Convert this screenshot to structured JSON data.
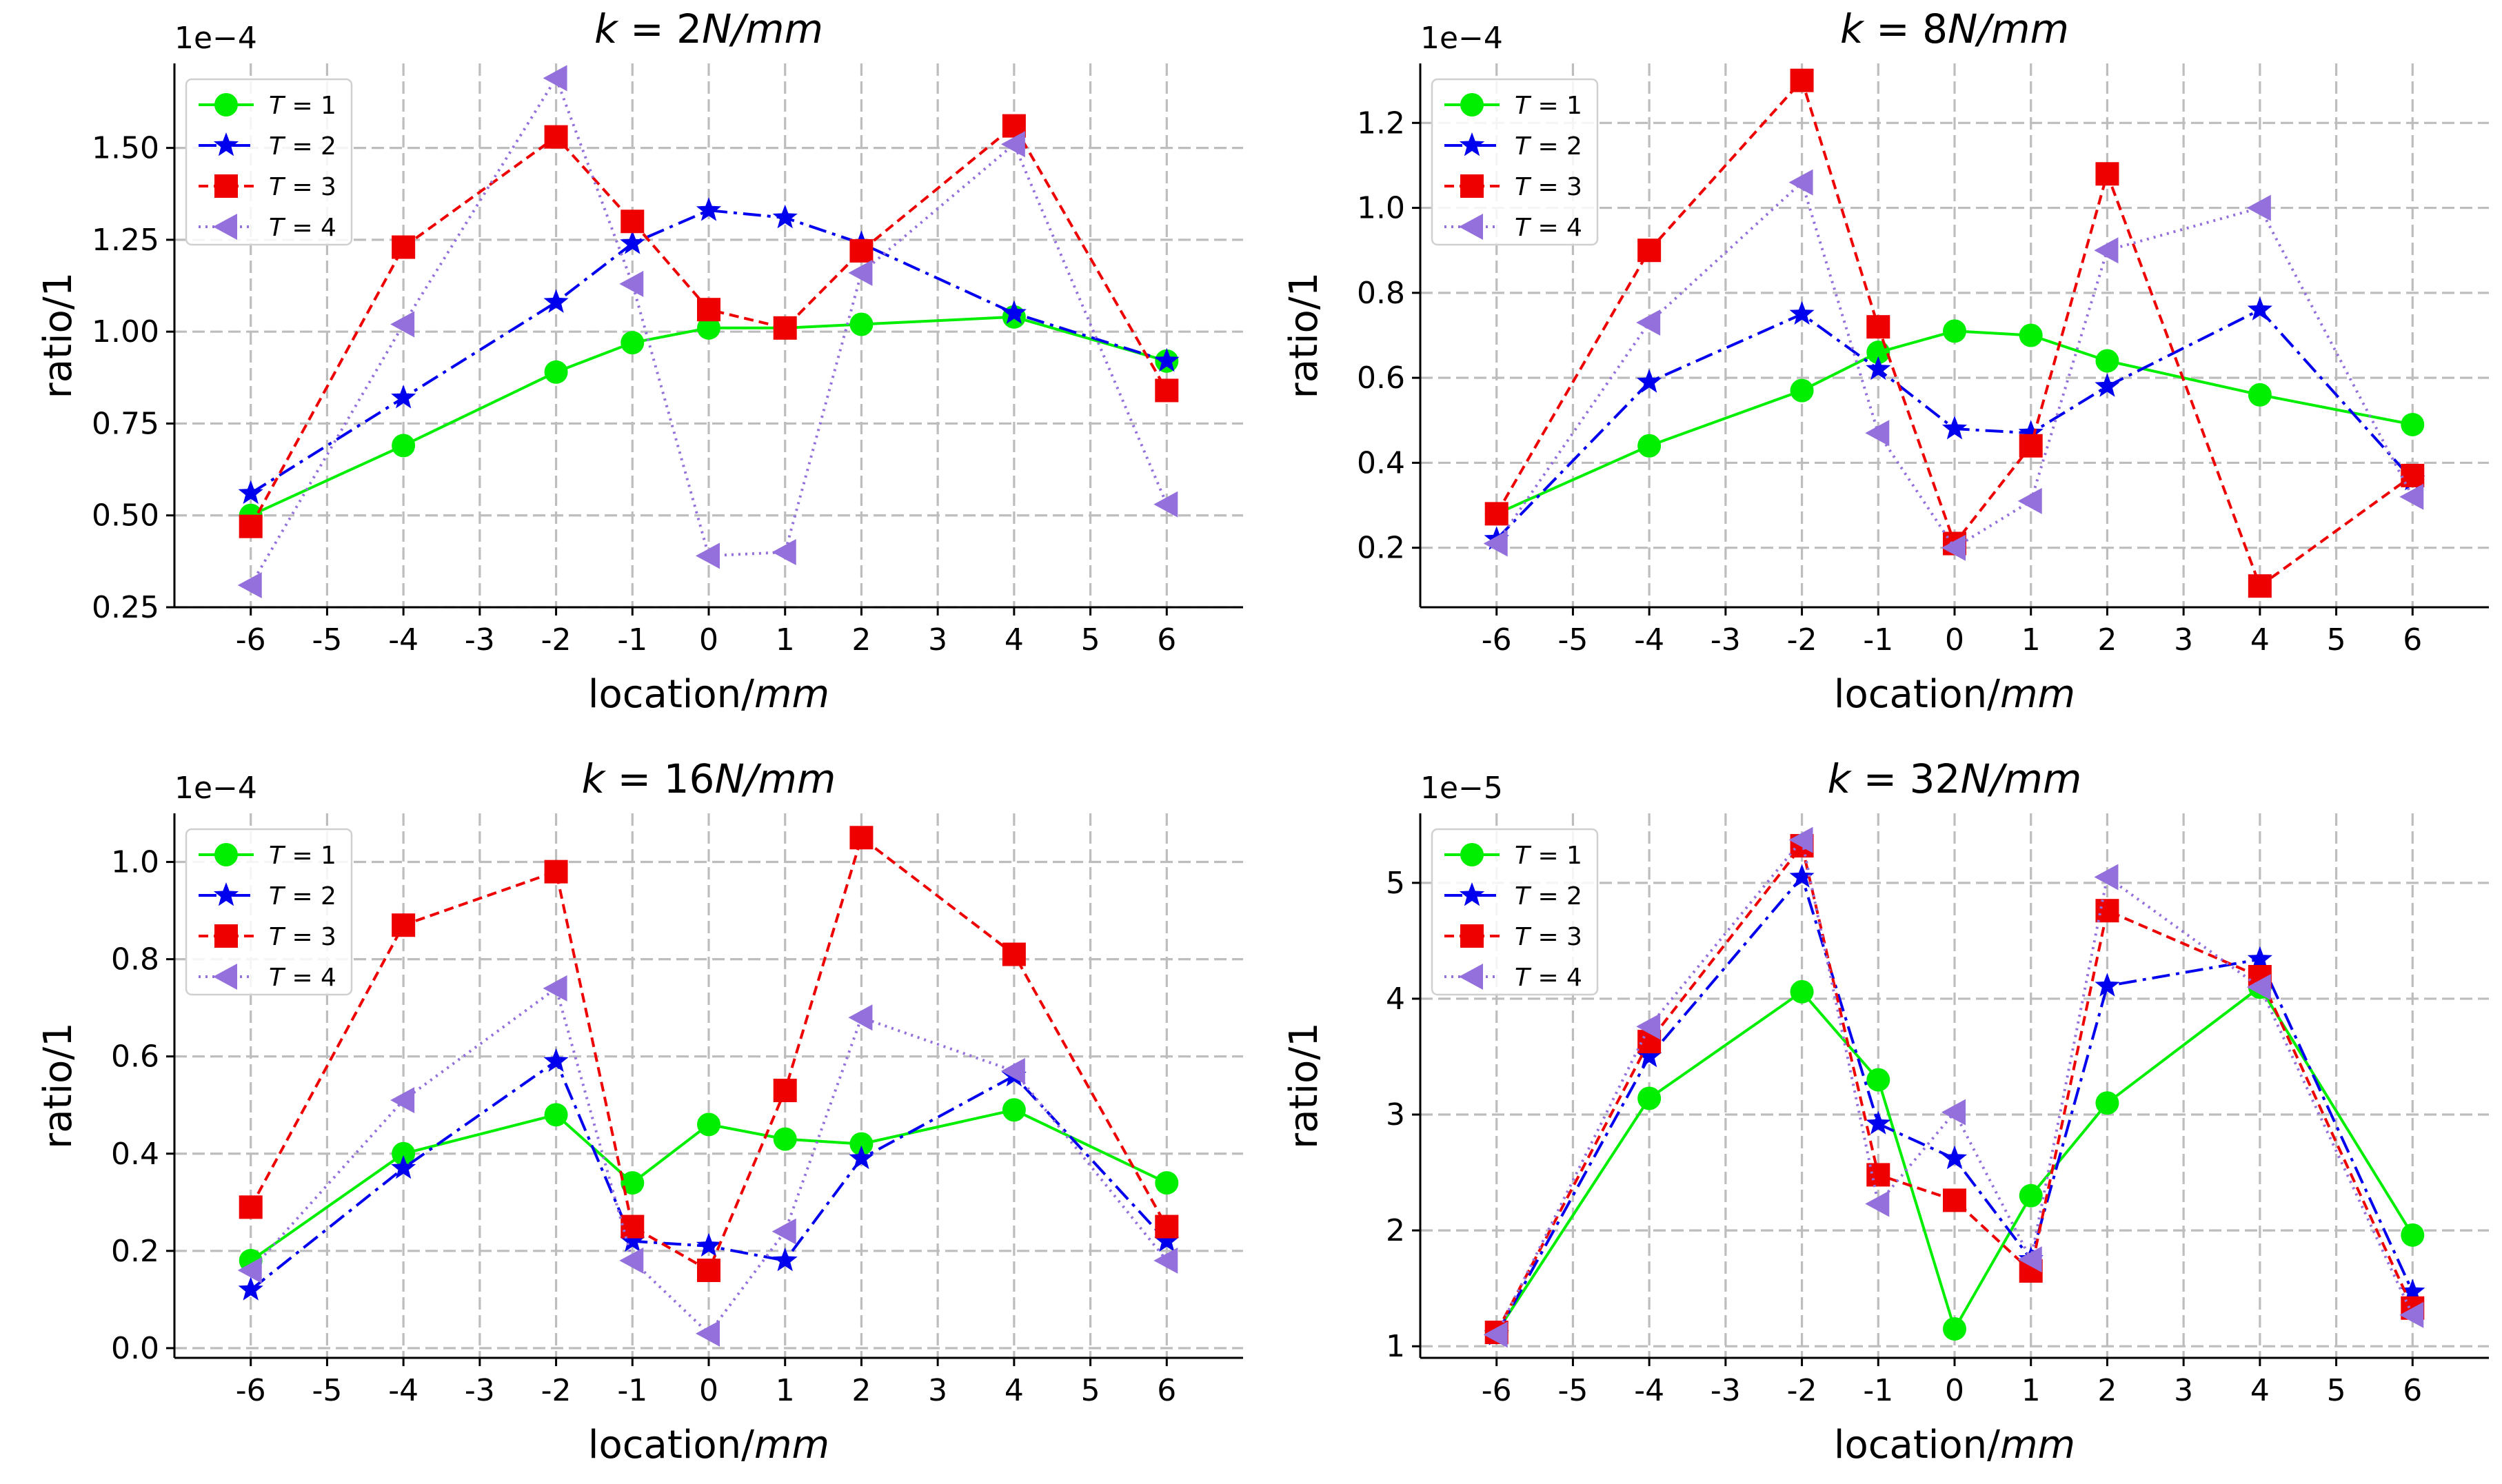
{
  "chart_data": [
    {
      "type": "line",
      "title": "k = 2N/mm",
      "title_parts": {
        "k": "k",
        "eq": " = 2",
        "unit": "N/mm"
      },
      "xlabel": "location/mm",
      "xlabel_parts": {
        "text": "location/",
        "unit": "mm"
      },
      "ylabel": "ratio/1",
      "y_multiplier": "1e−4",
      "x_ticks": [
        -6,
        -5,
        -4,
        -3,
        -2,
        -1,
        0,
        1,
        2,
        3,
        4,
        5,
        6
      ],
      "x_tick_labels": [
        "-6",
        "-5",
        "-4",
        "-3",
        "-2",
        "-1",
        "0",
        "1",
        "2",
        "3",
        "4",
        "5",
        "6"
      ],
      "xlim": [
        -7,
        7
      ],
      "ylim": [
        0.25,
        1.73
      ],
      "y_ticks": [
        0.25,
        0.5,
        0.75,
        1.0,
        1.25,
        1.5
      ],
      "y_tick_labels": [
        "0.25",
        "0.50",
        "0.75",
        "1.00",
        "1.25",
        "1.50"
      ],
      "x": [
        -6,
        -4,
        -2,
        -1,
        0,
        1,
        2,
        4,
        6
      ],
      "legend_position": "upper-left",
      "series": [
        {
          "name": "T = 1",
          "values": [
            0.5,
            0.69,
            0.89,
            0.97,
            1.01,
            1.01,
            1.02,
            1.04,
            0.92
          ]
        },
        {
          "name": "T = 2",
          "values": [
            0.56,
            0.82,
            1.08,
            1.24,
            1.33,
            1.31,
            1.24,
            1.05,
            0.92
          ]
        },
        {
          "name": "T = 3",
          "values": [
            0.47,
            1.23,
            1.53,
            1.3,
            1.06,
            1.01,
            1.22,
            1.56,
            0.84
          ]
        },
        {
          "name": "T = 4",
          "values": [
            0.31,
            1.02,
            1.69,
            1.13,
            0.39,
            0.4,
            1.16,
            1.51,
            0.53
          ]
        }
      ]
    },
    {
      "type": "line",
      "title": "k = 8N/mm",
      "title_parts": {
        "k": "k",
        "eq": " = 8",
        "unit": "N/mm"
      },
      "xlabel": "location/mm",
      "xlabel_parts": {
        "text": "location/",
        "unit": "mm"
      },
      "ylabel": "ratio/1",
      "y_multiplier": "1e−4",
      "x_ticks": [
        -6,
        -5,
        -4,
        -3,
        -2,
        -1,
        0,
        1,
        2,
        3,
        4,
        5,
        6
      ],
      "x_tick_labels": [
        "-6",
        "-5",
        "-4",
        "-3",
        "-2",
        "-1",
        "0",
        "1",
        "2",
        "3",
        "4",
        "5",
        "6"
      ],
      "xlim": [
        -7,
        7
      ],
      "ylim": [
        0.06,
        1.34
      ],
      "y_ticks": [
        0.2,
        0.4,
        0.6,
        0.8,
        1.0,
        1.2
      ],
      "y_tick_labels": [
        "0.2",
        "0.4",
        "0.6",
        "0.8",
        "1.0",
        "1.2"
      ],
      "x": [
        -6,
        -4,
        -2,
        -1,
        0,
        1,
        2,
        4,
        6
      ],
      "legend_position": "upper-left",
      "series": [
        {
          "name": "T = 1",
          "values": [
            0.28,
            0.44,
            0.57,
            0.66,
            0.71,
            0.7,
            0.64,
            0.56,
            0.49
          ]
        },
        {
          "name": "T = 2",
          "values": [
            0.22,
            0.59,
            0.75,
            0.62,
            0.48,
            0.47,
            0.58,
            0.76,
            0.36
          ]
        },
        {
          "name": "T = 3",
          "values": [
            0.28,
            0.9,
            1.3,
            0.72,
            0.21,
            0.44,
            1.08,
            0.11,
            0.37
          ]
        },
        {
          "name": "T = 4",
          "values": [
            0.21,
            0.73,
            1.06,
            0.47,
            0.2,
            0.31,
            0.9,
            1.0,
            0.32
          ]
        }
      ]
    },
    {
      "type": "line",
      "title": "k = 16N/mm",
      "title_parts": {
        "k": "k",
        "eq": " = 16",
        "unit": "N/mm"
      },
      "xlabel": "location/mm",
      "xlabel_parts": {
        "text": "location/",
        "unit": "mm"
      },
      "ylabel": "ratio/1",
      "y_multiplier": "1e−4",
      "x_ticks": [
        -6,
        -5,
        -4,
        -3,
        -2,
        -1,
        0,
        1,
        2,
        3,
        4,
        5,
        6
      ],
      "x_tick_labels": [
        "-6",
        "-5",
        "-4",
        "-3",
        "-2",
        "-1",
        "0",
        "1",
        "2",
        "3",
        "4",
        "5",
        "6"
      ],
      "xlim": [
        -7,
        7
      ],
      "ylim": [
        -0.02,
        1.1
      ],
      "y_ticks": [
        0.0,
        0.2,
        0.4,
        0.6,
        0.8,
        1.0
      ],
      "y_tick_labels": [
        "0.0",
        "0.2",
        "0.4",
        "0.6",
        "0.8",
        "1.0"
      ],
      "x": [
        -6,
        -4,
        -2,
        -1,
        0,
        1,
        2,
        4,
        6
      ],
      "legend_position": "upper-left",
      "series": [
        {
          "name": "T = 1",
          "values": [
            0.18,
            0.4,
            0.48,
            0.34,
            0.46,
            0.43,
            0.42,
            0.49,
            0.34
          ]
        },
        {
          "name": "T = 2",
          "values": [
            0.12,
            0.37,
            0.59,
            0.22,
            0.21,
            0.18,
            0.39,
            0.56,
            0.22
          ]
        },
        {
          "name": "T = 3",
          "values": [
            0.29,
            0.87,
            0.98,
            0.25,
            0.16,
            0.53,
            1.05,
            0.81,
            0.25
          ]
        },
        {
          "name": "T = 4",
          "values": [
            0.16,
            0.51,
            0.74,
            0.18,
            0.03,
            0.24,
            0.68,
            0.57,
            0.18
          ]
        }
      ]
    },
    {
      "type": "line",
      "title": "k = 32N/mm",
      "title_parts": {
        "k": "k",
        "eq": " = 32",
        "unit": "N/mm"
      },
      "xlabel": "location/mm",
      "xlabel_parts": {
        "text": "location/",
        "unit": "mm"
      },
      "ylabel": "ratio/1",
      "y_multiplier": "1e−5",
      "x_ticks": [
        -6,
        -5,
        -4,
        -3,
        -2,
        -1,
        0,
        1,
        2,
        3,
        4,
        5,
        6
      ],
      "x_tick_labels": [
        "-6",
        "-5",
        "-4",
        "-3",
        "-2",
        "-1",
        "0",
        "1",
        "2",
        "3",
        "4",
        "5",
        "6"
      ],
      "xlim": [
        -7,
        7
      ],
      "ylim": [
        0.9,
        5.6
      ],
      "y_ticks": [
        1,
        2,
        3,
        4,
        5
      ],
      "y_tick_labels": [
        "1",
        "2",
        "3",
        "4",
        "5"
      ],
      "x": [
        -6,
        -4,
        -2,
        -1,
        0,
        1,
        2,
        4,
        6
      ],
      "legend_position": "upper-left",
      "series": [
        {
          "name": "T = 1",
          "values": [
            1.12,
            3.14,
            4.06,
            3.3,
            1.15,
            2.3,
            3.1,
            4.1,
            1.96
          ]
        },
        {
          "name": "T = 2",
          "values": [
            1.1,
            3.5,
            5.05,
            2.92,
            2.62,
            1.75,
            4.11,
            4.34,
            1.47
          ]
        },
        {
          "name": "T = 3",
          "values": [
            1.12,
            3.63,
            5.32,
            2.48,
            2.26,
            1.65,
            4.76,
            4.19,
            1.33
          ]
        },
        {
          "name": "T = 4",
          "values": [
            1.1,
            3.76,
            5.37,
            2.23,
            3.02,
            1.75,
            5.05,
            4.1,
            1.27
          ]
        }
      ]
    }
  ],
  "series_styles": [
    {
      "color": "#00ee00",
      "marker": "circle",
      "dash": ""
    },
    {
      "color": "#0000ee",
      "marker": "star",
      "dash": "26 9 5 9"
    },
    {
      "color": "#ee0000",
      "marker": "square",
      "dash": "14 8"
    },
    {
      "color": "#9370db",
      "marker": "triangle-left",
      "dash": "3 7"
    }
  ]
}
